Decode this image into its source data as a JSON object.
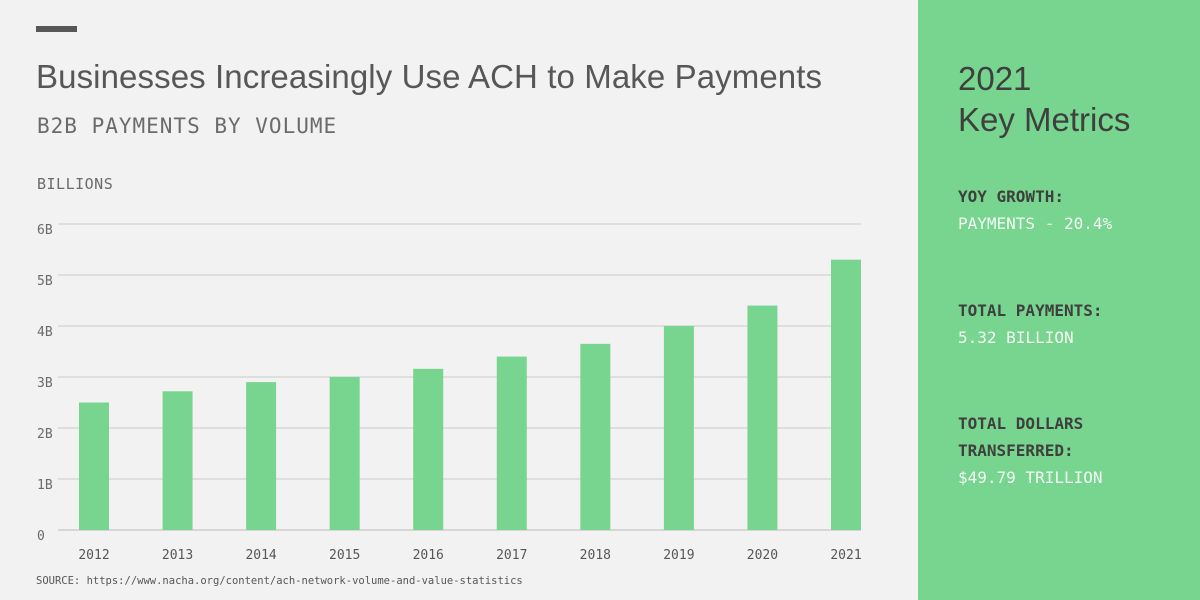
{
  "colors": {
    "background": "#f1f2f1",
    "panel": "#78d58f",
    "bar": "#78d58f",
    "text_dark": "#565756",
    "gridline": "#c9cac9"
  },
  "header": {
    "title": "Businesses Increasingly Use ACH to Make Payments",
    "subtitle": "B2B PAYMENTS BY VOLUME",
    "unit_label": "BILLIONS"
  },
  "chart_data": {
    "type": "bar",
    "title": "Businesses Increasingly Use ACH to Make Payments",
    "subtitle": "B2B PAYMENTS BY VOLUME",
    "xlabel": "",
    "ylabel": "BILLIONS",
    "categories": [
      "2012",
      "2013",
      "2014",
      "2015",
      "2016",
      "2017",
      "2018",
      "2019",
      "2020",
      "2021"
    ],
    "values": [
      2.5,
      2.72,
      2.9,
      3.0,
      3.16,
      3.4,
      3.65,
      4.0,
      4.4,
      5.3
    ],
    "ylim": [
      0,
      6
    ],
    "yticks": [
      0,
      1,
      2,
      3,
      4,
      5,
      6
    ],
    "ytick_labels": [
      "0",
      "1B",
      "2B",
      "3B",
      "4B",
      "5B",
      "6B"
    ],
    "grid": true,
    "legend": "none"
  },
  "source": "SOURCE: https://www.nacha.org/content/ach-network-volume-and-value-statistics",
  "panel": {
    "heading_line1": "2021",
    "heading_line2": "Key Metrics",
    "metrics": [
      {
        "label": "YOY GROWTH:",
        "value": "PAYMENTS - 20.4%"
      },
      {
        "label": "TOTAL PAYMENTS:",
        "value": "5.32 BILLION"
      },
      {
        "label": "TOTAL DOLLARS",
        "label2": "TRANSFERRED:",
        "value": "$49.79 TRILLION"
      }
    ]
  }
}
